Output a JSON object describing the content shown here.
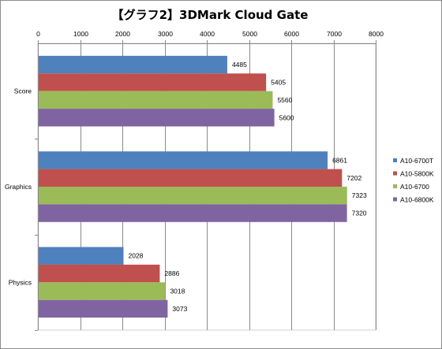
{
  "chart_data": {
    "type": "bar",
    "orientation": "horizontal",
    "title": "【グラフ2】3DMark Cloud Gate",
    "xlabel": "",
    "ylabel": "",
    "xlim": [
      0,
      8000
    ],
    "x_ticks": [
      0,
      1000,
      2000,
      3000,
      4000,
      5000,
      6000,
      7000,
      8000
    ],
    "axis_position": "top",
    "grid": true,
    "legend_position": "right",
    "categories": [
      "Score",
      "Graphics",
      "Physics"
    ],
    "series": [
      {
        "name": "A10-6700T",
        "color": "#4f81bd",
        "values": [
          4485,
          6861,
          2028
        ]
      },
      {
        "name": "A10-5800K",
        "color": "#c0504d",
        "values": [
          5405,
          7202,
          2886
        ]
      },
      {
        "name": "A10-6700",
        "color": "#9bbb59",
        "values": [
          5560,
          7323,
          3018
        ]
      },
      {
        "name": "A10-6800K",
        "color": "#8064a2",
        "values": [
          5600,
          7320,
          3073
        ]
      }
    ]
  }
}
